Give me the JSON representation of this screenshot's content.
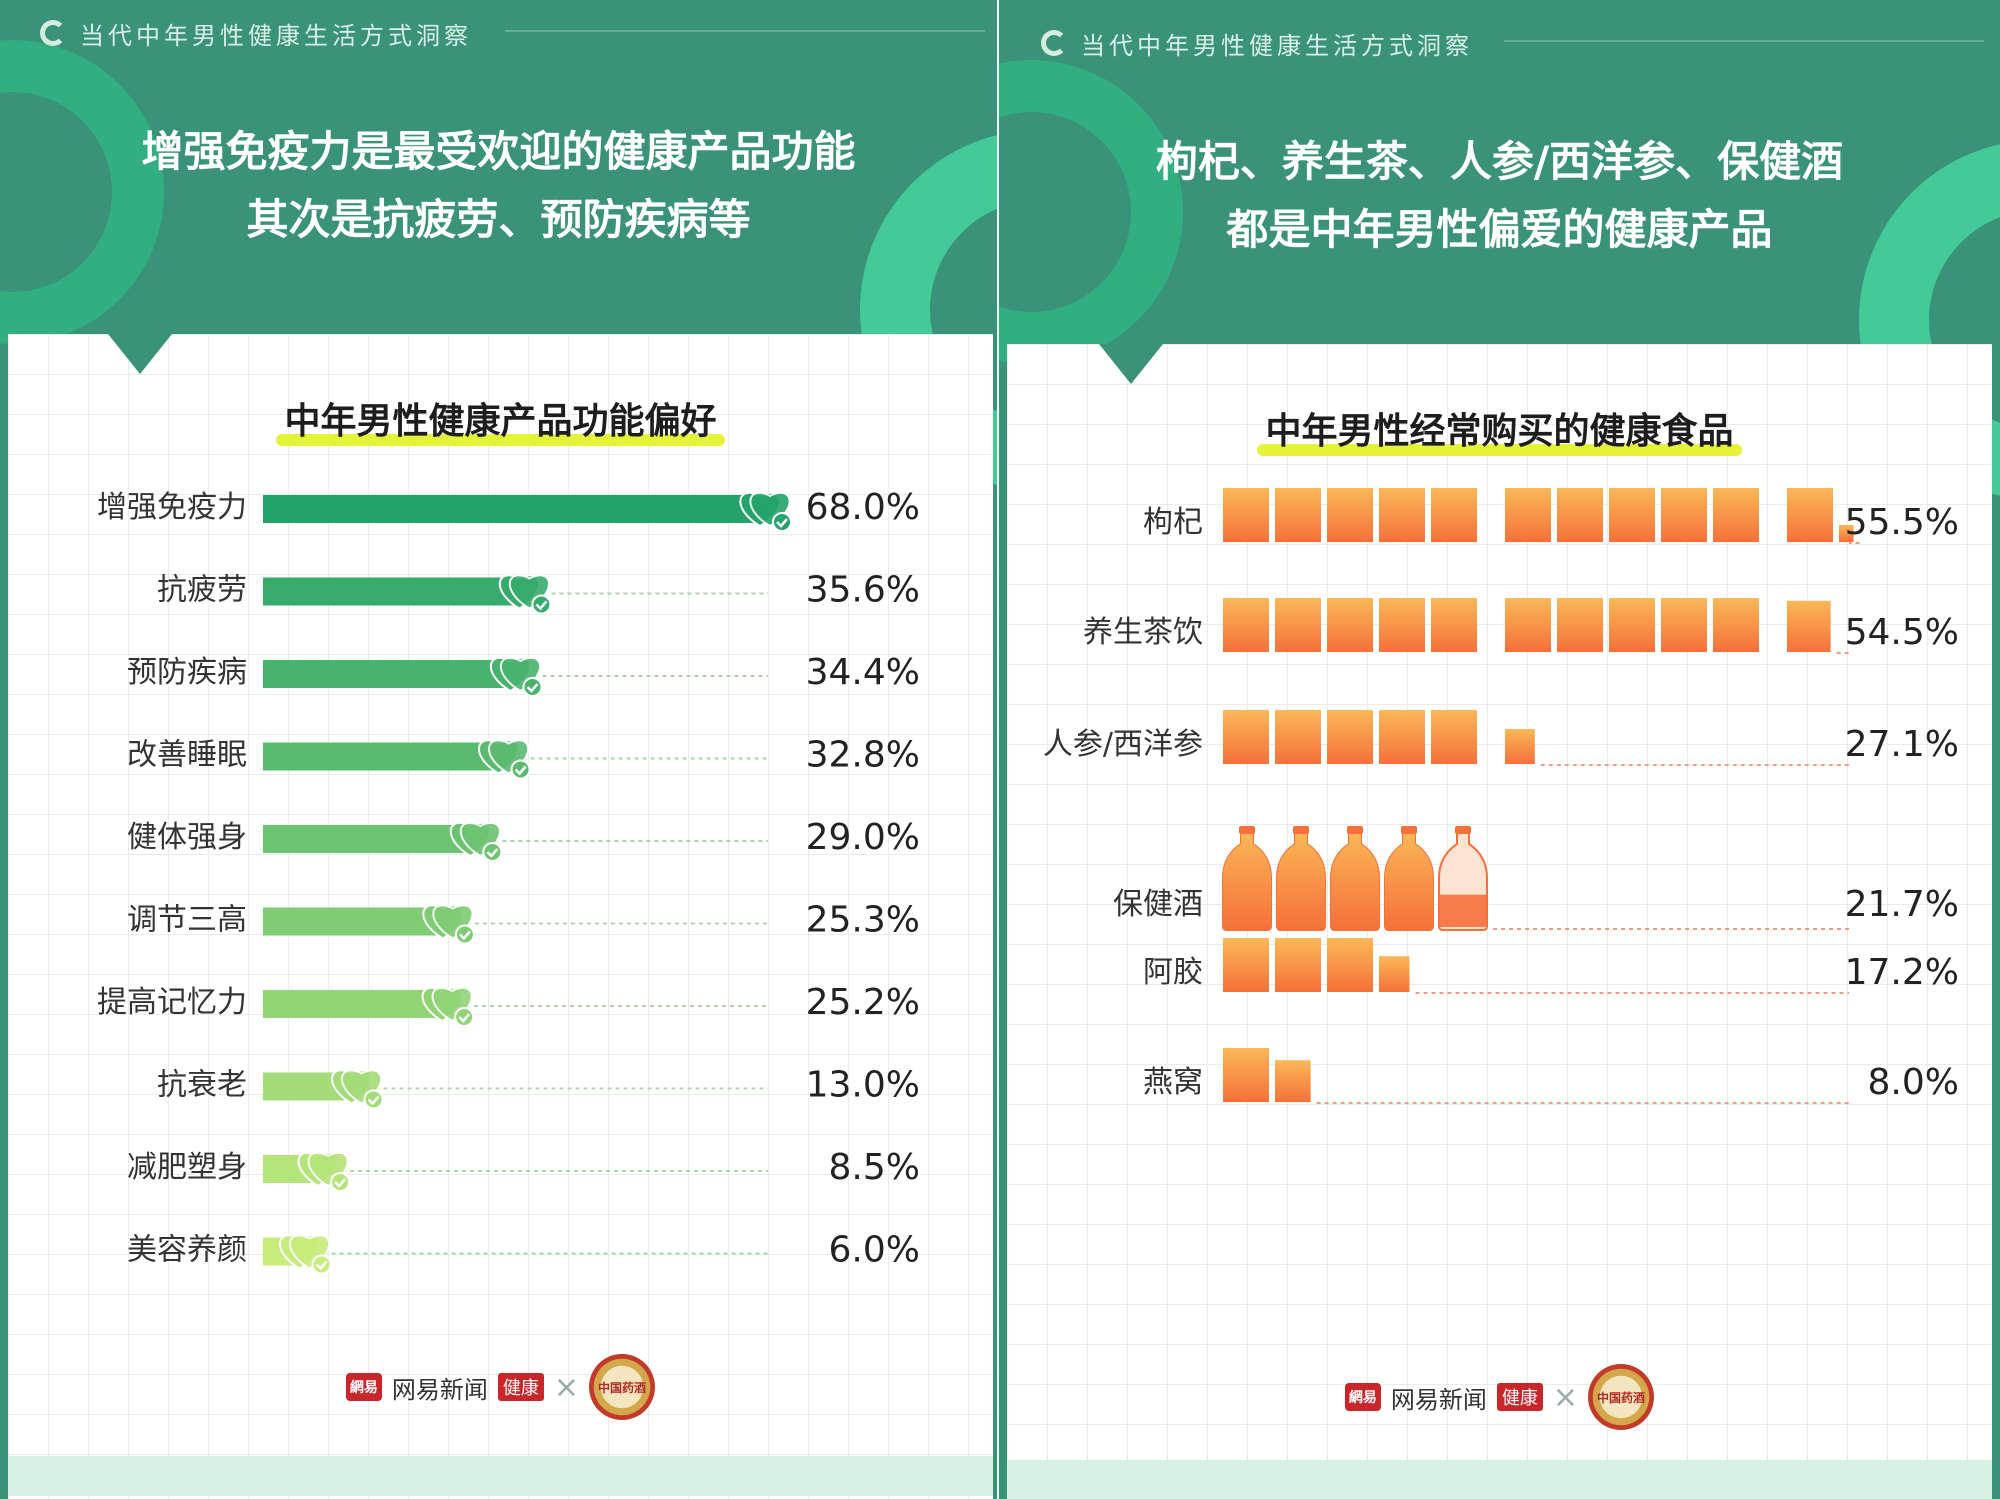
{
  "brand_colors": {
    "panel_green": "#3a9278",
    "bar_dark": "#24a36a",
    "bar_light": "#c7ec7c",
    "orange": "#f7a04a",
    "highlight": "#e5f23a"
  },
  "left": {
    "header": "当代中年男性健康生活方式洞察",
    "title_lines": [
      "增强免疫力是最受欢迎的健康产品功能",
      "其次是抗疲劳、预防疾病等"
    ],
    "chart_data": {
      "type": "bar",
      "orientation": "horizontal",
      "title": "中年男性健康产品功能偏好",
      "categories": [
        "增强免疫力",
        "抗疲劳",
        "预防疾病",
        "改善睡眠",
        "健体强身",
        "调节三高",
        "提高记忆力",
        "抗衰老",
        "减肥塑身",
        "美容养颜"
      ],
      "values": [
        68.0,
        35.6,
        34.4,
        32.8,
        29.0,
        25.3,
        25.2,
        13.0,
        8.5,
        6.0
      ],
      "value_labels": [
        "68.0%",
        "35.6%",
        "34.4%",
        "32.8%",
        "29.0%",
        "25.3%",
        "25.2%",
        "13.0%",
        "8.5%",
        "6.0%"
      ],
      "xlim": [
        0,
        68.0
      ],
      "marker_icon": "heart-check-icon"
    },
    "footer": {
      "logo_box": "網易",
      "text": "网易新闻",
      "tag": "健康",
      "x": "×",
      "seal_text": "中国药酒"
    }
  },
  "right": {
    "header": "当代中年男性健康生活方式洞察",
    "title_lines": [
      "枸杞、养生茶、人参/西洋参、保健酒",
      "都是中年男性偏爱的健康产品"
    ],
    "chart_data": {
      "type": "bar",
      "orientation": "horizontal",
      "style": "pictograph",
      "title": "中年男性经常购买的健康食品",
      "categories": [
        "枸杞",
        "养生茶饮",
        "人参/西洋参",
        "保健酒",
        "阿胶",
        "燕窝"
      ],
      "values": [
        55.5,
        54.5,
        27.1,
        21.7,
        17.2,
        8.0
      ],
      "value_labels": [
        "55.5%",
        "54.5%",
        "27.1%",
        "21.7%",
        "17.2%",
        "8.0%"
      ],
      "unit_per_icon": 5,
      "icon_types": [
        "box",
        "box",
        "box",
        "bottle",
        "box",
        "box"
      ]
    },
    "footer": {
      "logo_box": "網易",
      "text": "网易新闻",
      "tag": "健康",
      "x": "×",
      "seal_text": "中国药酒"
    }
  }
}
